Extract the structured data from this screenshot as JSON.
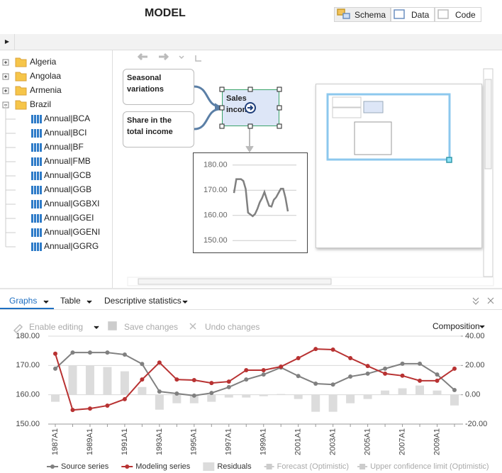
{
  "header": {
    "title": "MODEL",
    "views": [
      "Schema",
      "Data",
      "Code"
    ]
  },
  "tree": {
    "nodes": [
      {
        "label": "Algeria"
      },
      {
        "label": "Angolaa"
      },
      {
        "label": "Armenia"
      },
      {
        "label": "Brazil",
        "children": [
          "Annual|BCA",
          "Annual|BCI",
          "Annual|BF",
          "Annual|FMB",
          "Annual|GCB",
          "Annual|GGB",
          "Annual|GGBXI",
          "Annual|GGEI",
          "Annual|GGENI",
          "Annual|GGRG"
        ]
      }
    ]
  },
  "diagram": {
    "nodes": [
      "Seasonal variations",
      "Share in the total income",
      "Sales income"
    ],
    "mini_chart": {
      "ylim": [
        145,
        185
      ],
      "yticks": [
        {
          "value": 180,
          "label": "180.00"
        },
        {
          "value": 170,
          "label": "170.00"
        },
        {
          "value": 160,
          "label": "160.00"
        },
        {
          "value": 150,
          "label": "150.00"
        }
      ]
    }
  },
  "tabs": [
    "Graphs",
    "Table",
    "Descriptive statistics"
  ],
  "toolbar": {
    "actions": [
      "Enable editing",
      "Save changes",
      "Undo changes"
    ],
    "menu": "Composition"
  },
  "chart_data": {
    "type": "line",
    "categories": [
      "1987A1",
      null,
      "1989A1",
      null,
      "1991A1",
      null,
      "1993A1",
      null,
      "1995A1",
      null,
      "1997A1",
      null,
      "1999A1",
      null,
      "2001A1",
      null,
      "2003A1",
      null,
      "2005A1",
      null,
      "2007A1",
      null,
      "2009A1",
      null
    ],
    "series": [
      {
        "name": "Source series",
        "type": "line",
        "color": "#808080",
        "values": [
          168.9,
          174.4,
          174.4,
          174.4,
          173.7,
          170.5,
          161.1,
          160.4,
          159.7,
          160.6,
          162.6,
          165.2,
          166.9,
          169.3,
          166.4,
          163.8,
          163.5,
          166.2,
          167.2,
          168.9,
          170.6,
          170.6,
          166.9,
          161.6
        ]
      },
      {
        "name": "Modeling series",
        "type": "line",
        "color": "#b83232",
        "values": [
          174.0,
          154.8,
          155.3,
          156.3,
          158.5,
          165.2,
          171.0,
          165.2,
          165.0,
          164.0,
          164.5,
          168.4,
          168.4,
          169.6,
          172.5,
          175.6,
          175.4,
          172.5,
          169.8,
          167.2,
          166.5,
          164.8,
          164.8,
          168.9
        ]
      },
      {
        "name": "Residuals",
        "type": "bar",
        "axis": "y2",
        "color": "#dcdcdc",
        "values": [
          -4.8,
          19.8,
          19.8,
          18.9,
          16.0,
          5.3,
          -10.2,
          -5.8,
          -5.8,
          -4.8,
          -1.9,
          -1.9,
          -1.0,
          0.5,
          -2.9,
          -11.6,
          -11.6,
          -5.8,
          -2.9,
          2.9,
          4.4,
          6.3,
          2.9,
          -7.3
        ]
      }
    ],
    "inactive_legend": [
      "Forecast (Optimistic)",
      "Upper confidence limit (Optimistic)"
    ],
    "ylim": [
      150,
      180
    ],
    "yticks": [
      {
        "value": 150,
        "label": "150.00"
      },
      {
        "value": 160,
        "label": "160.00"
      },
      {
        "value": 170,
        "label": "170.00"
      },
      {
        "value": 180,
        "label": "180.00"
      }
    ],
    "y2lim": [
      -20,
      40
    ],
    "y2ticks": [
      {
        "value": -20,
        "label": "-20.00"
      },
      {
        "value": 0,
        "label": "0.00"
      },
      {
        "value": 20,
        "label": "20.00"
      },
      {
        "value": 40,
        "label": "40.00"
      }
    ],
    "grid": true,
    "legend": "bottom"
  }
}
